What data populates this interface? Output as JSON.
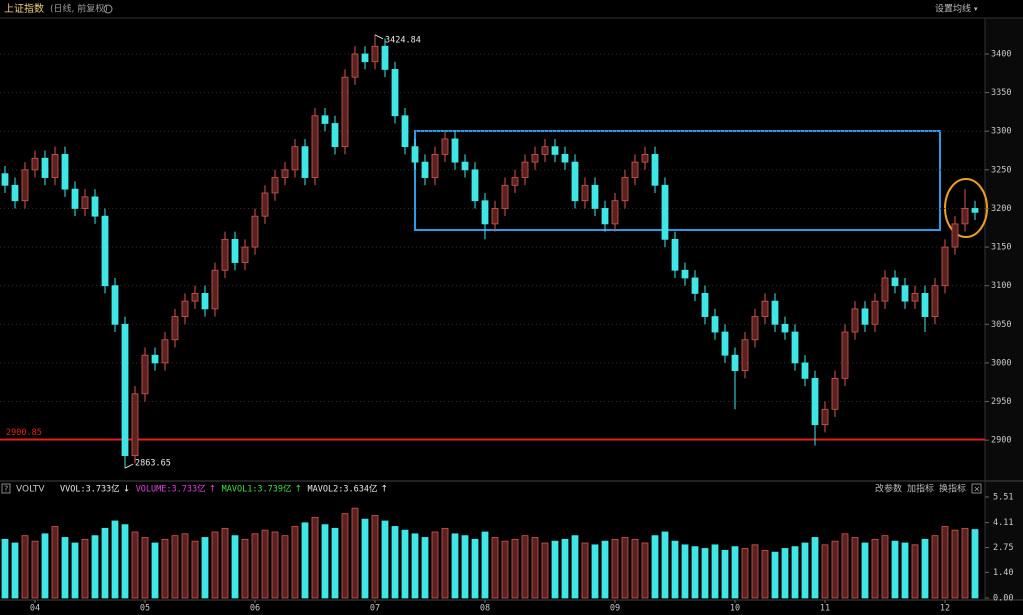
{
  "chart_data": [
    {
      "type": "candlestick",
      "title": "上证指数",
      "subtitle": "(日线, 前复权)",
      "up_color": "#d4574f",
      "up_fill": "#5a2220",
      "down_color": "#3ee6e6",
      "ylim": [
        2851,
        3444
      ],
      "yticks": [
        2900,
        2950,
        3000,
        3050,
        3100,
        3150,
        3200,
        3250,
        3300,
        3350,
        3400
      ],
      "grid": true,
      "reference_line": {
        "value": 2900.85,
        "color": "#e0201c"
      },
      "open": [
        3245,
        3230,
        3210,
        3250,
        3265,
        3240,
        3270,
        3225,
        3200,
        3215,
        3190,
        3100,
        3050,
        2880,
        2960,
        3010,
        3000,
        3030,
        3060,
        3080,
        3090,
        3070,
        3120,
        3160,
        3130,
        3150,
        3190,
        3220,
        3240,
        3250,
        3280,
        3240,
        3320,
        3310,
        3280,
        3370,
        3400,
        3390,
        3410,
        3380,
        3320,
        3280,
        3260,
        3240,
        3270,
        3290,
        3260,
        3250,
        3210,
        3180,
        3200,
        3230,
        3240,
        3260,
        3270,
        3280,
        3270,
        3260,
        3210,
        3230,
        3200,
        3180,
        3210,
        3240,
        3260,
        3270,
        3230,
        3160,
        3120,
        3110,
        3090,
        3060,
        3040,
        3010,
        2990,
        3030,
        3060,
        3080,
        3050,
        3040,
        3000,
        2980,
        2920,
        2940,
        2980,
        3040,
        3070,
        3050,
        3080,
        3110,
        3100,
        3080,
        3090,
        3060,
        3100,
        3150,
        3180,
        3200
      ],
      "high": [
        3255,
        3240,
        3260,
        3275,
        3275,
        3280,
        3280,
        3235,
        3225,
        3225,
        3200,
        3110,
        3060,
        2970,
        3020,
        3020,
        3040,
        3070,
        3090,
        3100,
        3100,
        3130,
        3170,
        3170,
        3160,
        3200,
        3230,
        3250,
        3260,
        3290,
        3290,
        3330,
        3330,
        3320,
        3380,
        3410,
        3410,
        3424.84,
        3420,
        3390,
        3330,
        3290,
        3270,
        3280,
        3300,
        3300,
        3270,
        3260,
        3220,
        3210,
        3240,
        3250,
        3270,
        3280,
        3290,
        3290,
        3280,
        3270,
        3240,
        3240,
        3210,
        3220,
        3250,
        3270,
        3280,
        3280,
        3240,
        3170,
        3130,
        3120,
        3100,
        3070,
        3050,
        3020,
        3040,
        3070,
        3090,
        3090,
        3060,
        3050,
        3010,
        2990,
        2950,
        2990,
        3050,
        3080,
        3080,
        3090,
        3120,
        3120,
        3110,
        3100,
        3100,
        3110,
        3160,
        3190,
        3225,
        3210
      ],
      "low": [
        3220,
        3200,
        3200,
        3240,
        3230,
        3230,
        3215,
        3190,
        3190,
        3180,
        3090,
        3040,
        2863.65,
        2870,
        2950,
        2990,
        2990,
        3020,
        3050,
        3070,
        3060,
        3060,
        3110,
        3120,
        3120,
        3140,
        3180,
        3210,
        3230,
        3240,
        3230,
        3230,
        3300,
        3270,
        3270,
        3360,
        3380,
        3380,
        3370,
        3310,
        3270,
        3250,
        3230,
        3230,
        3260,
        3250,
        3240,
        3200,
        3160,
        3170,
        3190,
        3220,
        3230,
        3250,
        3260,
        3260,
        3250,
        3200,
        3200,
        3190,
        3170,
        3170,
        3200,
        3230,
        3250,
        3220,
        3150,
        3110,
        3100,
        3080,
        3050,
        3030,
        3000,
        2940,
        2980,
        3020,
        3050,
        3040,
        3030,
        2990,
        2970,
        2893,
        2910,
        2930,
        2970,
        3030,
        3040,
        3040,
        3070,
        3090,
        3070,
        3070,
        3040,
        3050,
        3090,
        3140,
        3170,
        3185
      ],
      "close": [
        3230,
        3210,
        3250,
        3265,
        3240,
        3270,
        3225,
        3200,
        3215,
        3190,
        3100,
        3050,
        2880,
        2960,
        3010,
        3000,
        3030,
        3060,
        3080,
        3090,
        3070,
        3120,
        3160,
        3130,
        3150,
        3190,
        3220,
        3240,
        3250,
        3280,
        3240,
        3320,
        3310,
        3280,
        3370,
        3400,
        3390,
        3410,
        3380,
        3320,
        3280,
        3260,
        3240,
        3270,
        3290,
        3260,
        3250,
        3210,
        3180,
        3200,
        3230,
        3240,
        3260,
        3270,
        3280,
        3270,
        3260,
        3210,
        3230,
        3200,
        3180,
        3210,
        3240,
        3260,
        3270,
        3230,
        3160,
        3120,
        3110,
        3090,
        3060,
        3040,
        3010,
        2990,
        3030,
        3060,
        3080,
        3050,
        3040,
        3000,
        2980,
        2920,
        2940,
        2980,
        3040,
        3070,
        3050,
        3080,
        3110,
        3100,
        3080,
        3090,
        3060,
        3100,
        3150,
        3180,
        3200,
        3195
      ]
    },
    {
      "type": "bar",
      "title": "VOLTV",
      "labels": [
        "VVOL:3.733亿",
        "VOLUME:3.733亿",
        "MAVOL1:3.739亿",
        "MAVOL2:3.634亿"
      ],
      "label_colors": [
        "#e8e8e8",
        "#e040e0",
        "#40e040",
        "#e8e8e8"
      ],
      "ylim": [
        0,
        5.89
      ],
      "yticks": [
        {
          "value": 0,
          "label": "0.00"
        },
        {
          "value": 1.4,
          "label": "1.40"
        },
        2.75,
        4.11,
        5.51
      ],
      "categories": [
        null,
        null,
        null,
        "04",
        null,
        null,
        null,
        null,
        null,
        null,
        null,
        null,
        null,
        null,
        "05",
        null,
        null,
        null,
        null,
        null,
        null,
        null,
        null,
        null,
        null,
        "06",
        null,
        null,
        null,
        null,
        null,
        null,
        null,
        null,
        null,
        null,
        null,
        "07",
        null,
        null,
        null,
        null,
        null,
        null,
        null,
        null,
        null,
        null,
        "08",
        null,
        null,
        null,
        null,
        null,
        null,
        null,
        null,
        null,
        null,
        null,
        null,
        "09",
        null,
        null,
        null,
        null,
        null,
        null,
        null,
        null,
        null,
        null,
        null,
        "10",
        null,
        null,
        null,
        null,
        null,
        null,
        null,
        null,
        "11",
        null,
        null,
        null,
        null,
        null,
        null,
        null,
        null,
        null,
        null,
        null,
        "12",
        null,
        null,
        null
      ],
      "values": [
        3.2,
        3.0,
        3.4,
        3.1,
        3.5,
        3.9,
        3.3,
        3.0,
        3.2,
        3.4,
        3.8,
        4.2,
        4.0,
        3.6,
        3.3,
        3.0,
        3.2,
        3.4,
        3.5,
        3.1,
        3.3,
        3.6,
        3.8,
        3.4,
        3.2,
        3.5,
        3.7,
        3.6,
        3.4,
        3.9,
        4.1,
        4.4,
        4.0,
        3.8,
        4.6,
        4.9,
        4.3,
        4.5,
        4.2,
        3.9,
        3.7,
        3.5,
        3.3,
        3.6,
        3.8,
        3.5,
        3.4,
        3.2,
        3.6,
        3.3,
        3.1,
        3.2,
        3.4,
        3.3,
        3.0,
        3.1,
        3.2,
        3.4,
        3.0,
        2.9,
        3.1,
        3.2,
        3.3,
        3.2,
        3.0,
        3.4,
        3.6,
        3.1,
        2.9,
        2.8,
        2.7,
        2.9,
        2.6,
        2.8,
        2.7,
        2.9,
        2.6,
        2.5,
        2.7,
        2.8,
        3.0,
        3.3,
        2.9,
        3.1,
        3.5,
        3.3,
        3.0,
        3.2,
        3.4,
        3.1,
        3.0,
        2.9,
        3.2,
        3.4,
        3.9,
        3.7,
        3.8,
        3.733
      ]
    }
  ],
  "toolbar": {
    "menu": "设置均线",
    "actions": [
      "改参数",
      "加指标",
      "换指标"
    ]
  }
}
